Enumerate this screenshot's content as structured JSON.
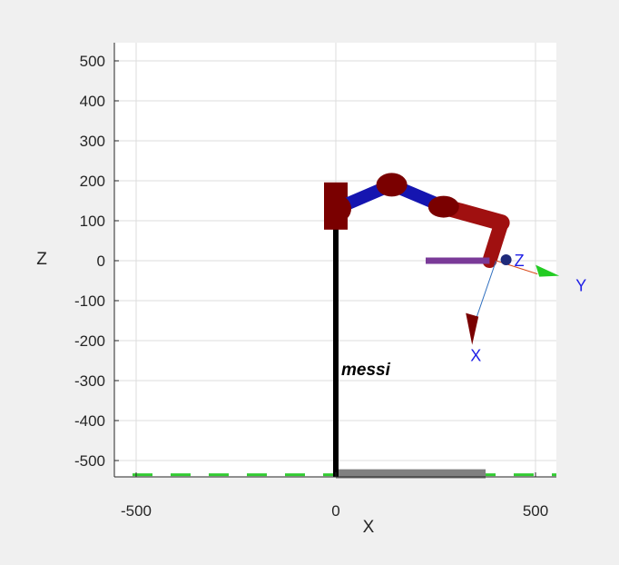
{
  "chart_data": {
    "type": "3d-robot-plot",
    "view": "XZ side view",
    "xlabel": "X",
    "ylabel": "Z",
    "xlim": [
      -550,
      550
    ],
    "ylim": [
      -540,
      540
    ],
    "x_ticks": [
      -500,
      0,
      500
    ],
    "y_ticks": [
      500,
      400,
      300,
      200,
      100,
      0,
      -100,
      -200,
      -300,
      -400,
      -500
    ],
    "grid": true,
    "annotation": "messi",
    "colors": {
      "background": "#f0f0f0",
      "axes_bg": "#ffffff",
      "grid": "#dcdcdc",
      "joint": "#7a0000",
      "link": "#1515b0",
      "link_end": "#a01010",
      "base": "#000000",
      "tool": "#7a3a98",
      "floor_shadow": "#808080",
      "floor_line": "#33cc33"
    },
    "robot": {
      "base_x": 0,
      "base_top_z": 130,
      "base_bottom_z": -540,
      "joints": [
        {
          "x": 0,
          "z": 130
        },
        {
          "x": 140,
          "z": 190
        },
        {
          "x": 270,
          "z": 135
        },
        {
          "x": 415,
          "z": 95
        },
        {
          "x": 385,
          "z": 0
        }
      ],
      "tool": {
        "x_start": 225,
        "x_end": 385,
        "z": 0
      }
    },
    "end_frame": {
      "origin": {
        "x": 415,
        "z": 0
      },
      "axes": [
        {
          "label": "X",
          "end": {
            "x": 330,
            "z": -215
          }
        },
        {
          "label": "Y",
          "end": {
            "x": 555,
            "z": -40
          }
        },
        {
          "label": "Z",
          "end": {
            "x": 415,
            "z": 0
          }
        }
      ]
    },
    "floor": {
      "z": -540,
      "shadow_x": [
        0,
        375
      ]
    }
  }
}
